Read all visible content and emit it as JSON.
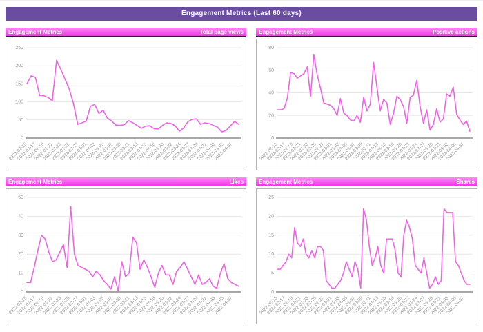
{
  "page_title": "Engagement Metrics (Last 60 days)",
  "colors": {
    "banner_background": "#6a4ca0",
    "panel_header_top": "#ff8af3",
    "panel_header_bottom": "#ef35e6",
    "line": "#ef63e6",
    "grid_line": "#e8e8e8",
    "axis_line": "#a8a8a8",
    "tick_text": "#999999",
    "panel_border": "#b3b3b3"
  },
  "chart_data": [
    {
      "type": "line",
      "title": "Engagement Metrics",
      "metric": "Total page views",
      "ylim": [
        0,
        250
      ],
      "y_ticks": [
        0,
        50,
        100,
        150,
        200,
        250
      ],
      "grid": true,
      "legend": "none",
      "x_tick_labels": [
        "2022-02-15",
        "2022-02-17",
        "2022-02-19",
        "2022-02-21",
        "2022-02-23",
        "2022-02-25",
        "2022-02-27",
        "2022-03-01",
        "2022-03-03",
        "2022-03-05",
        "2022-03-07",
        "2022-03-09",
        "2022-03-11",
        "2022-03-13",
        "2022-03-15",
        "2022-03-18",
        "2022-03-20",
        "2022-03-22",
        "2022-03-24",
        "2022-03-27",
        "2022-03-29",
        "2022-03-31",
        "2022-04-03",
        "2022-04-05",
        "2022-04-07"
      ],
      "values": [
        150,
        172,
        168,
        118,
        117,
        112,
        103,
        215,
        190,
        163,
        135,
        95,
        38,
        42,
        47,
        88,
        93,
        68,
        77,
        55,
        47,
        36,
        35,
        37,
        48,
        42,
        35,
        27,
        33,
        34,
        26,
        25,
        35,
        42,
        40,
        34,
        19,
        28,
        45,
        52,
        53,
        38,
        42,
        40,
        35,
        30,
        17,
        21,
        33,
        46,
        38
      ]
    },
    {
      "type": "line",
      "title": "Engagement Metrics",
      "metric": "Positive actions",
      "ylim": [
        0,
        80
      ],
      "y_ticks": [
        0,
        20,
        40,
        60,
        80
      ],
      "grid": true,
      "legend": "none",
      "x_tick_labels": [
        "2022-02-15",
        "2022-02-17",
        "2022-02-19",
        "2022-02-21",
        "2022-02-23",
        "2022-02-25",
        "2022-02-27",
        "2022-03-01",
        "2022-03-03",
        "2022-03-05",
        "2022-03-07",
        "2022-03-09",
        "2022-03-11",
        "2022-03-13",
        "2022-03-15",
        "2022-03-18",
        "2022-03-20",
        "2022-03-22",
        "2022-03-24",
        "2022-03-27",
        "2022-03-29",
        "2022-03-31",
        "2022-04-03",
        "2022-04-05",
        "2022-04-07"
      ],
      "values": [
        25,
        25,
        26,
        35,
        58,
        57,
        53,
        55,
        57,
        63,
        37,
        74,
        56,
        44,
        31,
        30,
        29,
        26,
        20,
        35,
        22,
        20,
        16,
        15,
        20,
        14,
        36,
        24,
        30,
        67,
        45,
        24,
        34,
        31,
        12,
        22,
        37,
        34,
        28,
        13,
        36,
        38,
        51,
        28,
        13,
        25,
        7,
        12,
        26,
        14,
        17,
        39,
        37,
        45,
        21,
        16,
        12,
        15,
        6
      ]
    },
    {
      "type": "line",
      "title": "Engagement Metrics",
      "metric": "Likes",
      "ylim": [
        0,
        50
      ],
      "y_ticks": [
        0,
        10,
        20,
        30,
        40,
        50
      ],
      "grid": true,
      "legend": "none",
      "x_tick_labels": [
        "2022-02-15",
        "2022-02-17",
        "2022-02-19",
        "2022-02-21",
        "2022-02-23",
        "2022-02-25",
        "2022-02-27",
        "2022-03-01",
        "2022-03-03",
        "2022-03-05",
        "2022-03-07",
        "2022-03-09",
        "2022-03-11",
        "2022-03-13",
        "2022-03-15",
        "2022-03-18",
        "2022-03-20",
        "2022-03-22",
        "2022-03-24",
        "2022-03-27",
        "2022-03-29",
        "2022-03-31",
        "2022-04-03",
        "2022-04-05",
        "2022-04-07"
      ],
      "values": [
        5,
        5,
        13,
        22,
        30,
        28,
        21,
        16,
        17,
        21,
        25,
        13,
        45,
        20,
        14,
        13,
        12,
        11,
        8,
        11,
        9,
        6,
        4,
        1.5,
        8,
        0.5,
        16,
        8,
        10,
        29,
        26,
        12,
        17,
        13,
        8,
        2.5,
        10,
        14,
        9,
        9,
        4,
        11,
        13,
        16,
        12,
        8,
        4,
        9,
        4,
        5,
        7,
        3,
        2,
        10,
        15,
        7,
        5,
        4,
        3
      ]
    },
    {
      "type": "line",
      "title": "Engagement Metrics",
      "metric": "Shares",
      "ylim": [
        0,
        25
      ],
      "y_ticks": [
        0,
        5,
        10,
        15,
        20,
        25
      ],
      "grid": true,
      "legend": "none",
      "x_tick_labels": [
        "2022-02-15",
        "2022-02-17",
        "2022-02-19",
        "2022-02-21",
        "2022-02-23",
        "2022-02-25",
        "2022-02-27",
        "2022-03-01",
        "2022-03-03",
        "2022-03-05",
        "2022-03-07",
        "2022-03-09",
        "2022-03-11",
        "2022-03-13",
        "2022-03-15",
        "2022-03-18",
        "2022-03-20",
        "2022-03-22",
        "2022-03-24",
        "2022-03-27",
        "2022-03-29",
        "2022-03-31",
        "2022-04-03",
        "2022-04-05",
        "2022-04-07"
      ],
      "values": [
        6,
        6,
        7,
        8,
        10,
        9,
        17,
        13,
        12,
        14,
        10,
        9,
        11,
        9,
        12,
        12,
        11,
        3,
        2,
        1,
        1,
        2,
        3,
        5,
        8,
        6,
        4,
        8,
        6,
        1,
        22,
        19,
        12,
        7,
        9,
        12,
        7,
        5,
        14,
        14,
        14,
        11,
        5,
        4,
        15,
        19,
        17,
        14,
        7,
        6,
        5,
        9,
        5,
        1,
        2,
        4,
        2,
        3,
        22,
        21,
        21,
        21,
        8,
        7,
        5,
        3,
        2,
        2
      ]
    }
  ]
}
